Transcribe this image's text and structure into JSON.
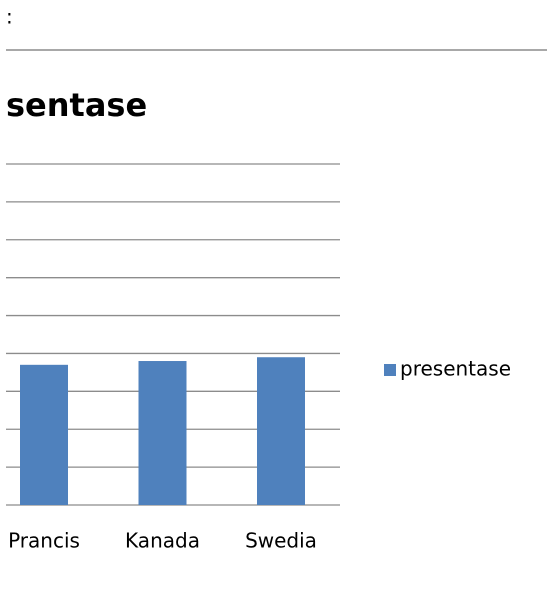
{
  "header": {
    "label": ":"
  },
  "chart_data": {
    "type": "bar",
    "title": "sentase",
    "categories": [
      "Prancis",
      "Kanada",
      "Swedia"
    ],
    "series": [
      {
        "name": "presentase",
        "color": "#4f81bd",
        "values": [
          3.7,
          3.8,
          3.9
        ]
      }
    ],
    "ylim": [
      0,
      9
    ],
    "yticks": [
      0,
      1,
      2,
      3,
      4,
      5,
      6,
      7,
      8,
      9
    ],
    "grid": true,
    "legend": "right"
  }
}
